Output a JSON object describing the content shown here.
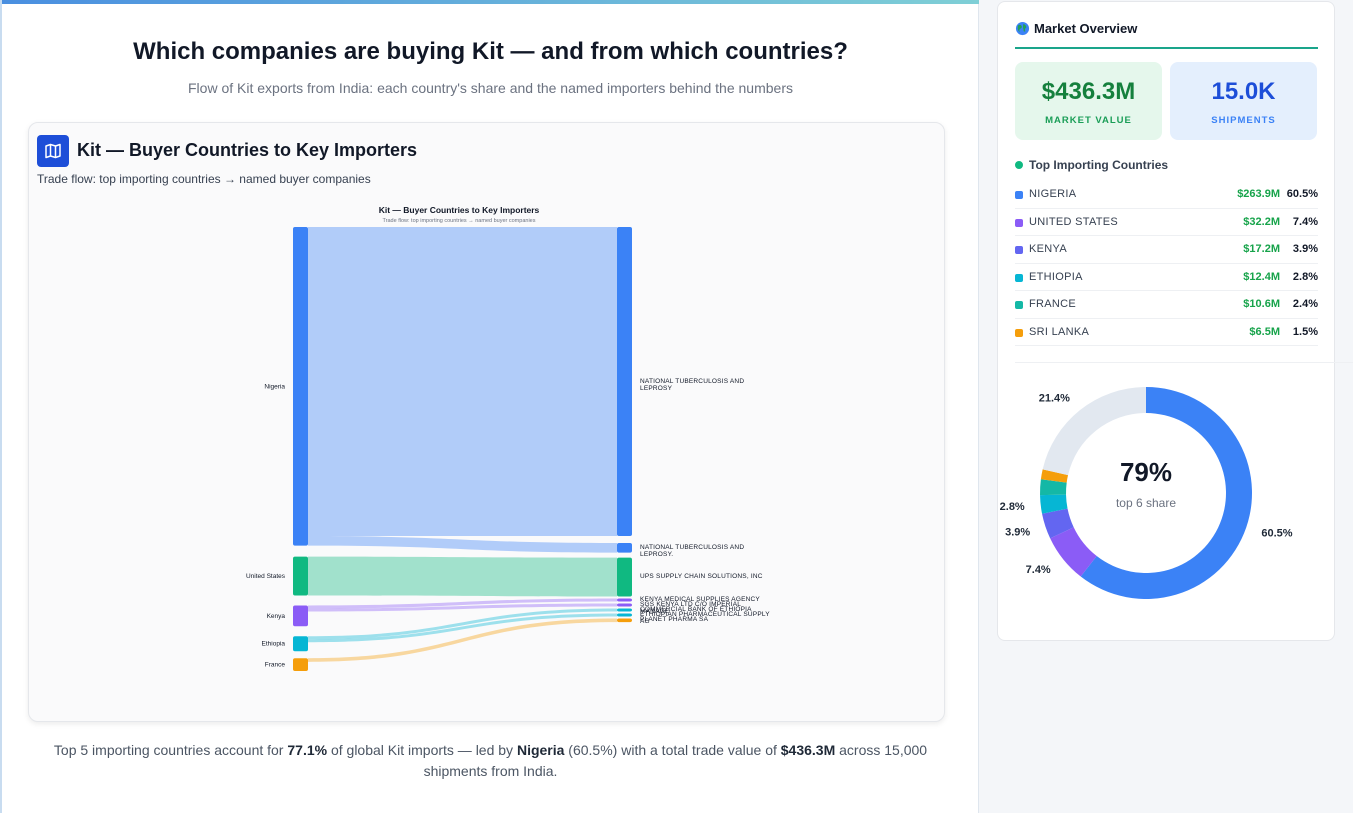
{
  "page": {
    "headline": "Which companies are buying Kit — and from which countries?",
    "subhead": "Flow of Kit exports from India: each country's share and the named importers behind the numbers"
  },
  "card": {
    "title": "Kit — Buyer Countries to Key Importers",
    "subtitle": "Trade flow: top importing countries → named buyer companies",
    "icon": "map-icon"
  },
  "chart_data": {
    "type": "sankey",
    "title": "Kit — Buyer Countries to Key Importers",
    "subtitle": "Trade flow: top importing countries → named buyer companies",
    "sources": [
      {
        "name": "Nigeria",
        "value": 263.9,
        "color": "#3b82f6"
      },
      {
        "name": "United States",
        "value": 32.2,
        "color": "#10b981"
      },
      {
        "name": "Kenya",
        "value": 17.2,
        "color": "#8b5cf6"
      },
      {
        "name": "Ethiopia",
        "value": 12.4,
        "color": "#06b6d4"
      },
      {
        "name": "France",
        "value": 10.6,
        "color": "#f59e0b"
      }
    ],
    "targets": [
      {
        "name": "NATIONAL TUBERCULOSIS AND LEPROSY",
        "value": 256.0,
        "color": "#3b82f6"
      },
      {
        "name": "NATIONAL TUBERCULOSIS AND LEPROSY.",
        "value": 7.9,
        "color": "#3b82f6"
      },
      {
        "name": "UPS SUPPLY CHAIN SOLUTIONS, INC",
        "value": 32.2,
        "color": "#10b981"
      },
      {
        "name": "KENYA MEDICAL SUPPLIES AGENCY",
        "value": 2.5,
        "color": "#8b5cf6"
      },
      {
        "name": "SGS KENYA LTD C/O IMPERIAL MANAGE",
        "value": 2.0,
        "color": "#8b5cf6"
      },
      {
        "name": "COMMERCIAL BANK OF ETHIOPIA",
        "value": 1.8,
        "color": "#06b6d4"
      },
      {
        "name": "ETHIOPIAN PHARMACEUTICAL SUPPLY AG",
        "value": 1.6,
        "color": "#06b6d4"
      },
      {
        "name": "PLANET PHARMA SA",
        "value": 3.0,
        "color": "#f59e0b"
      }
    ],
    "links": [
      {
        "source": "Nigeria",
        "target": "NATIONAL TUBERCULOSIS AND LEPROSY",
        "value": 256.0
      },
      {
        "source": "Nigeria",
        "target": "NATIONAL TUBERCULOSIS AND LEPROSY.",
        "value": 7.9
      },
      {
        "source": "United States",
        "target": "UPS SUPPLY CHAIN SOLUTIONS, INC",
        "value": 32.2
      },
      {
        "source": "Kenya",
        "target": "KENYA MEDICAL SUPPLIES AGENCY",
        "value": 2.5
      },
      {
        "source": "Kenya",
        "target": "SGS KENYA LTD C/O IMPERIAL MANAGE",
        "value": 2.0
      },
      {
        "source": "Ethiopia",
        "target": "COMMERCIAL BANK OF ETHIOPIA",
        "value": 1.8
      },
      {
        "source": "Ethiopia",
        "target": "ETHIOPIAN PHARMACEUTICAL SUPPLY AG",
        "value": 1.6
      },
      {
        "source": "France",
        "target": "PLANET PHARMA SA",
        "value": 3.0
      }
    ]
  },
  "footnote": {
    "p1": "Top 5 importing countries account for ",
    "share": "77.1%",
    "p2": " of global Kit imports — led by ",
    "leader": "Nigeria",
    "p3": " (60.5%) with a total trade value of ",
    "total": "$436.3M",
    "p4": " across 15,000 shipments from India."
  },
  "sidebar": {
    "title": "Market Overview",
    "globe_icon": "globe-icon",
    "kpis": [
      {
        "value": "$436.3M",
        "label": "MARKET VALUE"
      },
      {
        "value": "15.0K",
        "label": "SHIPMENTS"
      }
    ],
    "list_heading": "Top Importing Countries",
    "countries": [
      {
        "name": "NIGERIA",
        "value": "$263.9M",
        "share": "60.5%",
        "color": "#3b82f6"
      },
      {
        "name": "UNITED STATES",
        "value": "$32.2M",
        "share": "7.4%",
        "color": "#8b5cf6"
      },
      {
        "name": "KENYA",
        "value": "$17.2M",
        "share": "3.9%",
        "color": "#6366f1"
      },
      {
        "name": "ETHIOPIA",
        "value": "$12.4M",
        "share": "2.8%",
        "color": "#06b6d4"
      },
      {
        "name": "FRANCE",
        "value": "$10.6M",
        "share": "2.4%",
        "color": "#14b8a6"
      },
      {
        "name": "SRI LANKA",
        "value": "$6.5M",
        "share": "1.5%",
        "color": "#f59e0b"
      }
    ],
    "donut": {
      "center_value": "79%",
      "center_label": "top 6 share",
      "slices": [
        {
          "value": 60.5,
          "label": "60.5%",
          "color": "#3b82f6"
        },
        {
          "value": 7.4,
          "label": "7.4%",
          "color": "#8b5cf6"
        },
        {
          "value": 3.9,
          "label": "3.9%",
          "color": "#6366f1"
        },
        {
          "value": 2.8,
          "label": "2.8%",
          "color": "#06b6d4"
        },
        {
          "value": 2.4,
          "label": "",
          "color": "#14b8a6"
        },
        {
          "value": 1.5,
          "label": "",
          "color": "#f59e0b"
        },
        {
          "value": 21.4,
          "label": "21.4%",
          "color": "#e2e8f0"
        }
      ]
    }
  }
}
